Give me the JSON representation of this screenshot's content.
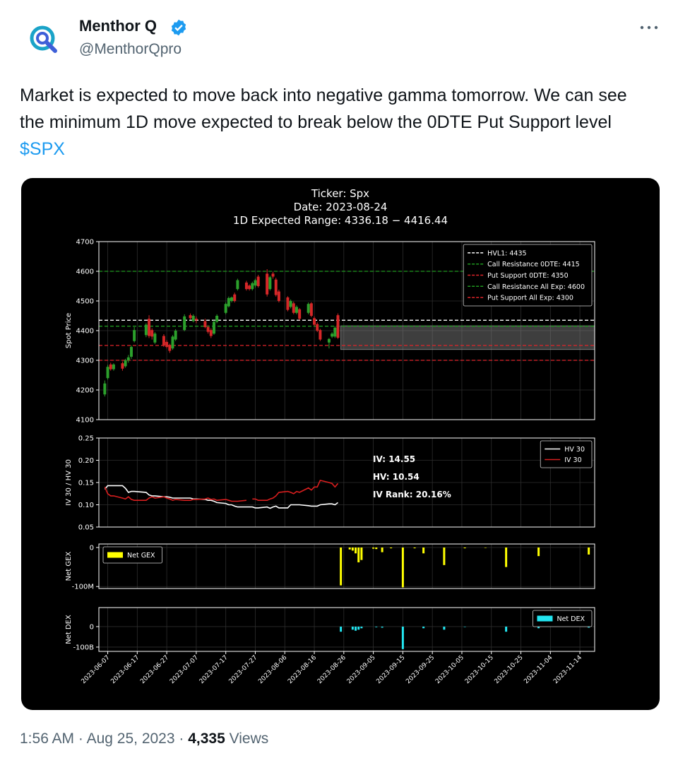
{
  "tweet": {
    "name": "Menthor Q",
    "handle": "@MenthorQpro",
    "text": "Market is expected to move back into negative gamma tomorrow. We can see the minimum 1D move expected to break below the 0DTE Put Support level ",
    "cashtag": "$SPX",
    "time": "1:56 AM",
    "separator": "·",
    "date": "Aug 25, 2023",
    "views": "4,335",
    "views_label": "Views"
  },
  "chart_data": [
    {
      "type": "candlestick",
      "title": "Ticker: Spx",
      "subtitle": [
        "Date: 2023-08-24",
        "1D Expected Range: 4336.18 − 4416.44"
      ],
      "ylabel": "Spot Price",
      "x": [
        "2023-06-06",
        "2023-06-07",
        "2023-06-08",
        "2023-06-09",
        "2023-06-12",
        "2023-06-13",
        "2023-06-14",
        "2023-06-15",
        "2023-06-16",
        "2023-06-20",
        "2023-06-21",
        "2023-06-22",
        "2023-06-23",
        "2023-06-26",
        "2023-06-27",
        "2023-06-28",
        "2023-06-29",
        "2023-06-30",
        "2023-07-03",
        "2023-07-05",
        "2023-07-06",
        "2023-07-07",
        "2023-07-10",
        "2023-07-11",
        "2023-07-12",
        "2023-07-13",
        "2023-07-14",
        "2023-07-17",
        "2023-07-18",
        "2023-07-19",
        "2023-07-20",
        "2023-07-21",
        "2023-07-24",
        "2023-07-25",
        "2023-07-26",
        "2023-07-27",
        "2023-07-28",
        "2023-07-31",
        "2023-08-01",
        "2023-08-02",
        "2023-08-03",
        "2023-08-04",
        "2023-08-07",
        "2023-08-08",
        "2023-08-09",
        "2023-08-10",
        "2023-08-11",
        "2023-08-14",
        "2023-08-15",
        "2023-08-16",
        "2023-08-17",
        "2023-08-18",
        "2023-08-21",
        "2023-08-22",
        "2023-08-23",
        "2023-08-24"
      ],
      "open": [
        4185,
        4240,
        4286,
        4270,
        4290,
        4280,
        4300,
        4312,
        4365,
        4385,
        4440,
        4402,
        4360,
        4382,
        4362,
        4352,
        4340,
        4370,
        4402,
        4452,
        4432,
        4440,
        4432,
        4412,
        4402,
        4390,
        4430,
        4460,
        4482,
        4500,
        4522,
        4540,
        4562,
        4552,
        4540,
        4552,
        4582,
        4592,
        4540,
        4592,
        4572,
        4532,
        4512,
        4480,
        4492,
        4460,
        4472,
        4460,
        4492,
        4442,
        4422,
        4402,
        4360,
        4380,
        4380,
        4452
      ],
      "high": [
        4232,
        4285,
        4292,
        4290,
        4296,
        4305,
        4318,
        4350,
        4412,
        4425,
        4452,
        4408,
        4395,
        4388,
        4368,
        4356,
        4385,
        4405,
        4455,
        4458,
        4455,
        4448,
        4440,
        4418,
        4408,
        4435,
        4455,
        4495,
        4515,
        4515,
        4528,
        4575,
        4568,
        4556,
        4565,
        4575,
        4588,
        4607,
        4585,
        4598,
        4578,
        4538,
        4516,
        4505,
        4498,
        4485,
        4476,
        4495,
        4496,
        4448,
        4428,
        4406,
        4375,
        4395,
        4415,
        4458
      ],
      "low": [
        4178,
        4235,
        4265,
        4265,
        4265,
        4275,
        4292,
        4305,
        4360,
        4378,
        4375,
        4370,
        4355,
        4345,
        4340,
        4325,
        4335,
        4365,
        4398,
        4438,
        4428,
        4425,
        4408,
        4390,
        4375,
        4386,
        4425,
        4455,
        4478,
        4495,
        4495,
        4535,
        4535,
        4535,
        4535,
        4545,
        4545,
        4515,
        4535,
        4575,
        4515,
        4495,
        4465,
        4475,
        4455,
        4455,
        4435,
        4455,
        4445,
        4415,
        4395,
        4365,
        4340,
        4375,
        4375,
        4372
      ],
      "close": [
        4222,
        4278,
        4270,
        4286,
        4272,
        4300,
        4310,
        4345,
        4402,
        4420,
        4382,
        4380,
        4390,
        4350,
        4345,
        4332,
        4380,
        4400,
        4448,
        4442,
        4450,
        4435,
        4412,
        4396,
        4382,
        4430,
        4450,
        4490,
        4510,
        4512,
        4500,
        4570,
        4540,
        4540,
        4560,
        4570,
        4550,
        4522,
        4580,
        4582,
        4520,
        4500,
        4470,
        4500,
        4460,
        4480,
        4440,
        4490,
        4450,
        4420,
        4400,
        4370,
        4372,
        4390,
        4410,
        4376
      ],
      "up_color": "#2ca02c",
      "down_color": "#d62728",
      "levels": [
        {
          "name": "HVL1: 4435",
          "value": 4435,
          "color": "#ffffff"
        },
        {
          "name": "Call Resistance 0DTE: 4415",
          "value": 4415,
          "color": "#1f9a1f"
        },
        {
          "name": "Put Support 0DTE: 4350",
          "value": 4350,
          "color": "#e0242a"
        },
        {
          "name": "Call Resistance All Exp: 4600",
          "value": 4600,
          "color": "#1f9a1f"
        },
        {
          "name": "Put Support All Exp: 4300",
          "value": 4300,
          "color": "#e0242a"
        }
      ],
      "expected_range": [
        4336.18,
        4416.44
      ],
      "ylim": [
        4100,
        4700
      ],
      "yticks": [
        4100,
        4200,
        4300,
        4400,
        4500,
        4600,
        4700
      ],
      "grid": true,
      "legend": "upper right"
    },
    {
      "type": "line",
      "ylabel": "IV 30 / HV 30",
      "series": [
        {
          "name": "HV 30",
          "color": "#ffffff",
          "values": [
            0.135,
            0.143,
            0.143,
            0.143,
            0.143,
            0.137,
            0.128,
            0.13,
            0.13,
            0.128,
            0.122,
            0.12,
            0.12,
            0.118,
            0.118,
            0.117,
            0.115,
            0.115,
            0.115,
            0.115,
            0.113,
            0.113,
            0.112,
            0.11,
            0.11,
            0.108,
            0.105,
            0.103,
            0.1,
            0.1,
            0.097,
            0.095,
            0.095,
            0.095,
            0.095,
            0.093,
            0.093,
            0.095,
            0.092,
            0.095,
            0.097,
            0.093,
            0.093,
            0.1,
            0.1,
            0.1,
            0.1,
            0.098,
            0.097,
            0.097,
            0.097,
            0.1,
            0.102,
            0.102,
            0.1,
            0.105
          ]
        },
        {
          "name": "IV 30",
          "color": "#d81e1e",
          "values": [
            0.14,
            0.125,
            0.12,
            0.12,
            0.115,
            0.113,
            0.118,
            0.112,
            0.11,
            0.11,
            0.115,
            0.118,
            0.115,
            0.118,
            0.115,
            0.113,
            0.11,
            0.112,
            0.11,
            0.11,
            0.112,
            0.112,
            0.113,
            0.115,
            0.112,
            0.113,
            0.11,
            0.112,
            0.11,
            0.108,
            0.108,
            0.108,
            0.11,
            null,
            0.113,
            0.113,
            0.11,
            0.11,
            0.113,
            0.115,
            0.12,
            0.128,
            0.13,
            0.128,
            0.125,
            0.13,
            0.128,
            0.138,
            0.133,
            0.14,
            0.14,
            0.155,
            0.15,
            0.148,
            0.14,
            0.148
          ]
        }
      ],
      "annotations": [
        "IV: 14.55",
        "HV: 10.54",
        "IV Rank: 20.16%"
      ],
      "annotation_color": "#ffff33",
      "ylim": [
        0.05,
        0.25
      ],
      "yticks": [
        {
          "value": 0.05,
          "label": "0.05"
        },
        {
          "value": 0.1,
          "label": "0.10"
        },
        {
          "value": 0.15,
          "label": "0.15"
        },
        {
          "value": 0.2,
          "label": "0.20"
        },
        {
          "value": 0.25,
          "label": "0.25"
        }
      ],
      "grid": true,
      "legend": "upper right"
    },
    {
      "type": "bar",
      "ylabel": "Net GEX",
      "series": [
        {
          "name": "Net GEX",
          "color": "#ffff00",
          "x": [
            "2023-08-25",
            "2023-08-28",
            "2023-08-29",
            "2023-08-30",
            "2023-08-31",
            "2023-09-01",
            "2023-09-05",
            "2023-09-06",
            "2023-09-08",
            "2023-09-11",
            "2023-09-15",
            "2023-09-19",
            "2023-09-22",
            "2023-09-29",
            "2023-10-06",
            "2023-10-13",
            "2023-10-20",
            "2023-10-31",
            "2023-11-17"
          ],
          "values": [
            -97000000,
            -5000000,
            -8000000,
            -15000000,
            -38000000,
            -32000000,
            -3000000,
            -4000000,
            -12000000,
            -2000000,
            -102000000,
            -2000000,
            -15000000,
            -45000000,
            -2000000,
            -1000000,
            -50000000,
            -22000000,
            -18000000
          ]
        }
      ],
      "ylim": [
        -105000000,
        9000000
      ],
      "yticks": [
        0,
        {
          "value": -100000000,
          "label": "-100M"
        }
      ],
      "grid": true,
      "legend": "upper left"
    },
    {
      "type": "bar",
      "ylabel": "Net DEX",
      "series": [
        {
          "name": "Net DEX",
          "color": "#22e5f0",
          "x": [
            "2023-08-25",
            "2023-08-29",
            "2023-08-30",
            "2023-08-31",
            "2023-09-01",
            "2023-09-06",
            "2023-09-08",
            "2023-09-15",
            "2023-09-22",
            "2023-09-29",
            "2023-10-06",
            "2023-10-20",
            "2023-10-31",
            "2023-11-17"
          ],
          "values": [
            -25000000000,
            -15000000000,
            -20000000000,
            -15000000000,
            -8000000000,
            -3000000000,
            -5000000000,
            -110000000000,
            -8000000000,
            -15000000000,
            -2000000000,
            -25000000000,
            -8000000000,
            -5000000000
          ]
        }
      ],
      "ylim": [
        -121000000000,
        93000000000
      ],
      "yticks": [
        0,
        {
          "value": -100000000000,
          "label": "-100B"
        }
      ],
      "grid": true,
      "legend": "upper right",
      "xlim": [
        "2023-06-04",
        "2023-11-19"
      ],
      "xticks": [
        "2023-06-07",
        "2023-06-17",
        "2023-06-27",
        "2023-07-07",
        "2023-07-17",
        "2023-07-27",
        "2023-08-06",
        "2023-08-16",
        "2023-08-26",
        "2023-09-05",
        "2023-09-15",
        "2023-09-25",
        "2023-10-05",
        "2023-10-15",
        "2023-10-25",
        "2023-11-04",
        "2023-11-14"
      ]
    }
  ]
}
